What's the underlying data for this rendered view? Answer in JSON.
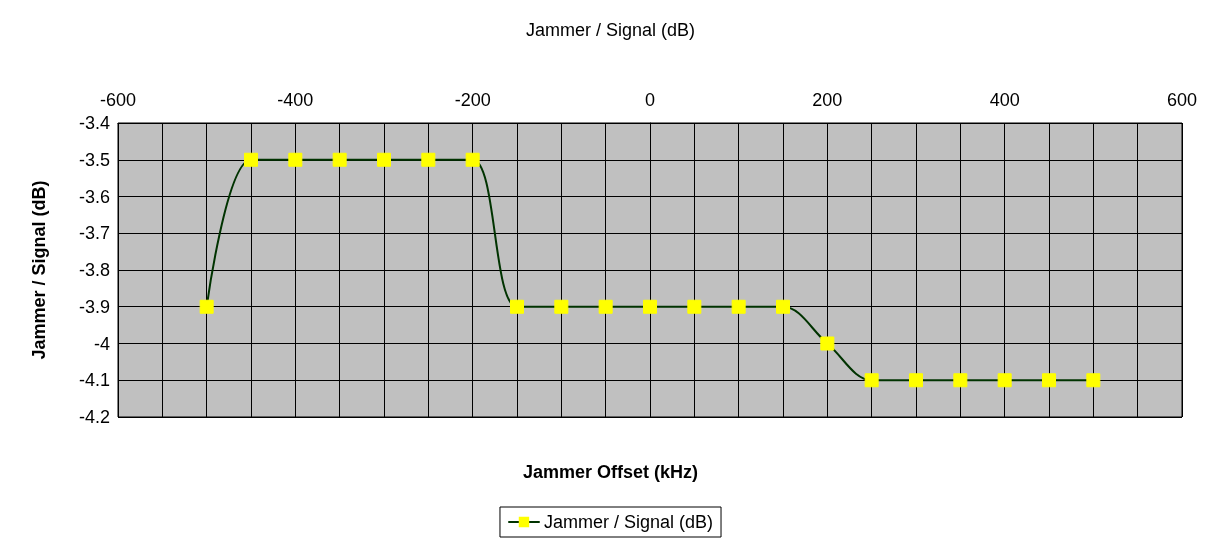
{
  "chart_data": {
    "type": "line",
    "title": "Jammer / Signal (dB)",
    "xlabel": "Jammer Offset (kHz)",
    "ylabel": "Jammer / Signal (dB)",
    "x": [
      -500,
      -450,
      -400,
      -350,
      -300,
      -250,
      -200,
      -150,
      -100,
      -50,
      0,
      50,
      100,
      150,
      200,
      250,
      300,
      350,
      400,
      450,
      500
    ],
    "series": [
      {
        "name": "Jammer / Signal (dB)",
        "color": "#003300",
        "colors": [
          "#ffff00",
          "#ffff00",
          "#ffff00",
          "#ffff00",
          "#ffff00",
          "#ffff00",
          "#ffff00",
          "#ffff00",
          "#ffff00",
          "#ffff00",
          "#ffff00",
          "#ffff00",
          "#ffff00",
          "#ffff00",
          "#ffff00",
          "#ffff00",
          "#ffff00",
          "#ffff00",
          "#ffff00",
          "#ffff00",
          "#ffff00"
        ],
        "values": [
          -3.9,
          -3.5,
          -3.5,
          -3.5,
          -3.5,
          -3.5,
          -3.5,
          -3.9,
          -3.9,
          -3.9,
          -3.9,
          -3.9,
          -3.9,
          -3.9,
          -4.0,
          -4.1,
          -4.1,
          -4.1,
          -4.1,
          -4.1,
          -4.1
        ]
      }
    ],
    "xlim": [
      -600,
      600
    ],
    "xticks": [
      -600,
      {
        "value": -550,
        "label": null
      },
      {
        "value": -500,
        "label": null
      },
      {
        "value": -450,
        "label": null
      },
      -400,
      {
        "value": -350,
        "label": null
      },
      {
        "value": -300,
        "label": null
      },
      {
        "value": -250,
        "label": null
      },
      -200,
      {
        "value": -150,
        "label": null
      },
      {
        "value": -100,
        "label": null
      },
      {
        "value": -50,
        "label": null
      },
      0,
      {
        "value": 50,
        "label": null
      },
      {
        "value": 100,
        "label": null
      },
      {
        "value": 150,
        "label": null
      },
      200,
      {
        "value": 250,
        "label": null
      },
      {
        "value": 300,
        "label": null
      },
      {
        "value": 350,
        "label": null
      },
      400,
      {
        "value": 450,
        "label": null
      },
      {
        "value": 500,
        "label": null
      },
      {
        "value": 550,
        "label": null
      },
      600
    ],
    "ylim": [
      -4.2,
      -3.4
    ],
    "yticks": [
      -4.2,
      -4.1,
      -4,
      -3.9,
      -3.8,
      -3.7,
      -3.6,
      -3.5,
      -3.4
    ],
    "grid": true,
    "legend": "bottom",
    "marker": "square",
    "line_style": "solid"
  }
}
